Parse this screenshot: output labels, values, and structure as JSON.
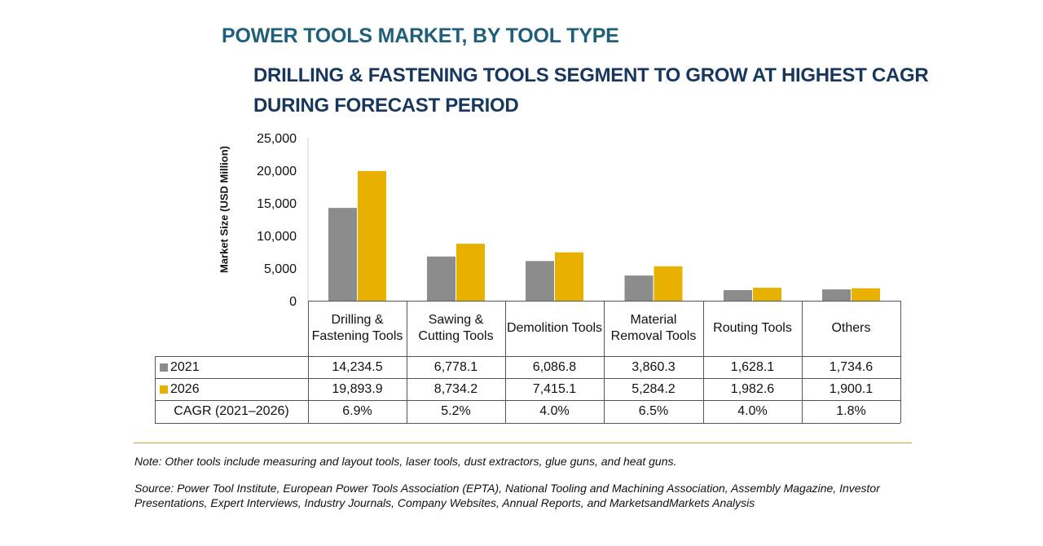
{
  "colors": {
    "s2021": "#8c8c8c",
    "s2026": "#e8b100",
    "title": "#1f5f7a",
    "subtitle": "#17375e",
    "rule": "#c9a23c"
  },
  "chart_data": {
    "type": "bar",
    "title": "POWER TOOLS MARKET, BY TOOL TYPE",
    "subtitle": "DRILLING & FASTENING TOOLS SEGMENT TO GROW AT HIGHEST CAGR DURING FORECAST PERIOD",
    "ylabel": "Market Size (USD Million)",
    "xlabel": "",
    "ylim": [
      0,
      25000
    ],
    "yticks": [
      "25,000",
      "20,000",
      "15,000",
      "10,000",
      "5,000",
      "0"
    ],
    "categories": [
      "Drilling & Fastening Tools",
      "Sawing & Cutting Tools",
      "Demolition Tools",
      "Material Removal Tools",
      "Routing Tools",
      "Others"
    ],
    "series": [
      {
        "name": "2021",
        "values": [
          14234.5,
          6778.1,
          6086.8,
          3860.3,
          1628.1,
          1734.6
        ],
        "labels": [
          "14,234.5",
          "6,778.1",
          "6,086.8",
          "3,860.3",
          "1,628.1",
          "1,734.6"
        ]
      },
      {
        "name": "2026",
        "values": [
          19893.9,
          8734.2,
          7415.1,
          5284.2,
          1982.6,
          1900.1
        ],
        "labels": [
          "19,893.9",
          "8,734.2",
          "7,415.1",
          "5,284.2",
          "1,982.6",
          "1,900.1"
        ]
      }
    ],
    "cagr_label": "CAGR (2021–2026)",
    "cagr": [
      "6.9%",
      "5.2%",
      "4.0%",
      "6.5%",
      "4.0%",
      "1.8%"
    ]
  },
  "note": "Note: Other tools include measuring and layout tools, laser tools, dust extractors, glue guns, and heat guns.",
  "source": "Source: Power Tool Institute, European Power Tools Association (EPTA), National Tooling and Machining Association, Assembly Magazine, Investor Presentations, Expert Interviews, Industry Journals, Company Websites, Annual Reports, and MarketsandMarkets Analysis"
}
